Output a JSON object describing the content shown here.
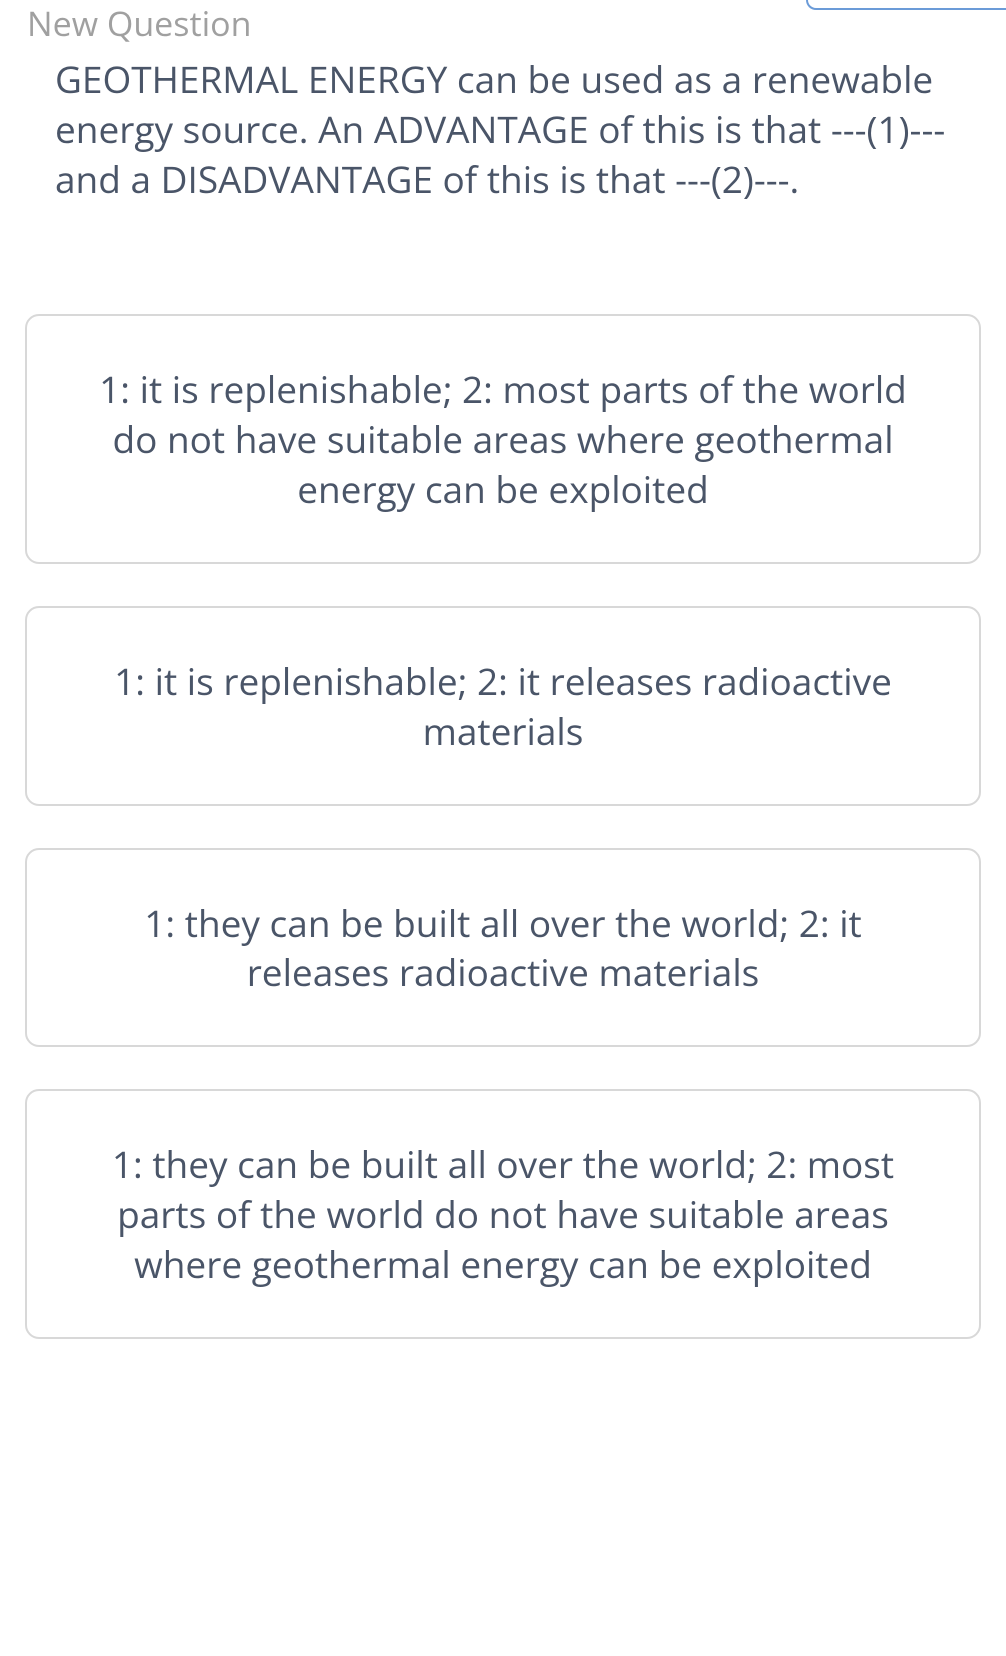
{
  "header": {
    "label": "New Question"
  },
  "question": {
    "text": "GEOTHERMAL ENERGY can be used as a renewable energy source. An ADVANTAGE of this is that ---(1)--- and a DISADVANTAGE of this is that ---(2)---."
  },
  "answers": [
    {
      "text": "1: it is replenishable; 2: most parts of the world do not have suitable areas where geothermal energy can be exploited"
    },
    {
      "text": "1: it is replenishable; 2: it releases radioactive materials"
    },
    {
      "text": "1: they can be built all over the world; 2: it releases radioactive materials"
    },
    {
      "text": "1: they can be built all over the world; 2: most parts of the world do not have suitable areas where geothermal energy can be exploited"
    }
  ],
  "styling": {
    "body_bg": "#ffffff",
    "text_color": "#4a5568",
    "header_color": "#a0a0a0",
    "border_color": "#d8d8d8",
    "button_border_color": "#6b9bd8",
    "font_size_header": 34,
    "font_size_body": 37,
    "border_radius": 14
  }
}
